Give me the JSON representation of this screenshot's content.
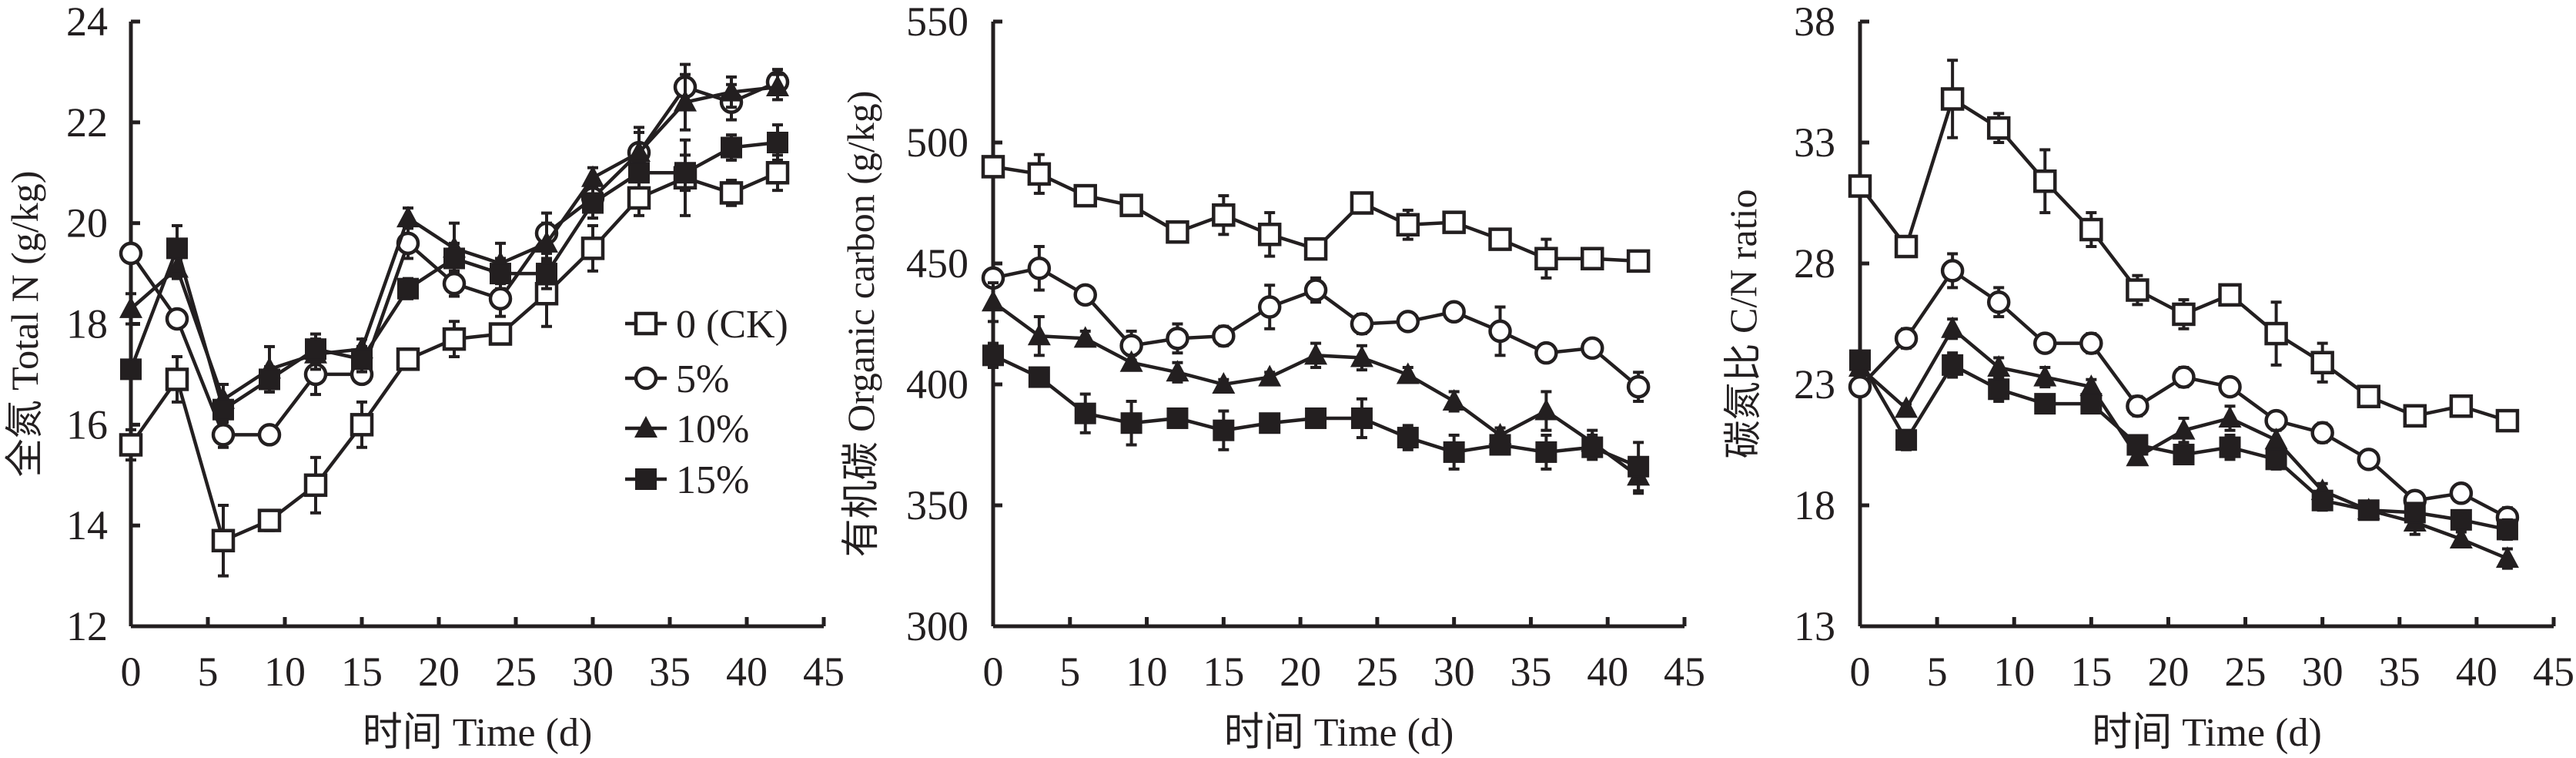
{
  "legend": {
    "entries": [
      "0 (CK)",
      "5%",
      "10%",
      "15%"
    ],
    "markers": [
      "open-square",
      "open-circle",
      "filled-triangle",
      "filled-square"
    ]
  },
  "colors": {
    "ink": "#231f20",
    "background": "#ffffff"
  },
  "chart_data": [
    {
      "type": "line",
      "xlabel": "时间 Time (d)",
      "ylabel": "全氮 Total N (g/kg)",
      "xlim": [
        0,
        45
      ],
      "xticks": [
        0,
        5,
        10,
        15,
        20,
        25,
        30,
        35,
        40,
        45
      ],
      "ylim": [
        12,
        24
      ],
      "yticks": [
        12,
        14,
        16,
        18,
        20,
        22,
        24
      ],
      "legend_position": "center-right",
      "grid": false,
      "x": [
        0,
        3,
        6,
        9,
        12,
        15,
        18,
        21,
        24,
        27,
        30,
        33,
        36,
        39,
        42
      ],
      "series": [
        {
          "name": "0 (CK)",
          "values": [
            15.6,
            16.9,
            13.7,
            14.1,
            14.8,
            16.0,
            17.3,
            17.7,
            17.8,
            18.6,
            19.5,
            20.5,
            20.9,
            20.6,
            21.0
          ],
          "errors": [
            0.3,
            0.45,
            0.7,
            0.2,
            0.55,
            0.45,
            0.2,
            0.35,
            0.15,
            0.65,
            0.45,
            0.35,
            0.75,
            0.25,
            0.35
          ]
        },
        {
          "name": "5%",
          "values": [
            19.4,
            18.1,
            15.8,
            15.8,
            17.0,
            17.0,
            19.6,
            18.8,
            18.5,
            19.8,
            20.5,
            21.4,
            22.7,
            22.4,
            22.8
          ],
          "errors": [
            0.1,
            0.1,
            0.25,
            0.1,
            0.4,
            0.15,
            0.3,
            0.25,
            0.35,
            0.4,
            0.4,
            0.5,
            0.45,
            0.35,
            0.25
          ]
        },
        {
          "name": "10%",
          "values": [
            18.3,
            19.1,
            16.5,
            17.1,
            17.4,
            17.5,
            20.1,
            19.5,
            19.2,
            19.6,
            20.9,
            21.4,
            22.4,
            22.6,
            22.7
          ],
          "errors": [
            0.3,
            0.2,
            0.3,
            0.45,
            0.3,
            0.2,
            0.2,
            0.5,
            0.4,
            0.4,
            0.2,
            0.4,
            0.55,
            0.3,
            0.25
          ]
        },
        {
          "name": "15%",
          "values": [
            17.1,
            19.5,
            16.3,
            16.9,
            17.5,
            17.3,
            18.7,
            19.3,
            19.0,
            19.0,
            20.4,
            21.0,
            21.0,
            21.5,
            21.6
          ],
          "errors": [
            0.15,
            0.45,
            0.2,
            0.25,
            0.3,
            0.25,
            0.2,
            0.3,
            0.3,
            0.3,
            0.3,
            0.3,
            0.35,
            0.25,
            0.35
          ]
        }
      ]
    },
    {
      "type": "line",
      "xlabel": "时间 Time (d)",
      "ylabel": "有机碳 Organic carbon (g/kg)",
      "xlim": [
        0,
        45
      ],
      "xticks": [
        0,
        5,
        10,
        15,
        20,
        25,
        30,
        35,
        40,
        45
      ],
      "ylim": [
        300,
        550
      ],
      "yticks": [
        300,
        350,
        400,
        450,
        500,
        550
      ],
      "grid": false,
      "x": [
        0,
        3,
        6,
        9,
        12,
        15,
        18,
        21,
        24,
        27,
        30,
        33,
        36,
        39,
        42
      ],
      "series": [
        {
          "name": "0 (CK)",
          "values": [
            490,
            487,
            478,
            474,
            463,
            470,
            462,
            456,
            475,
            466,
            467,
            460,
            452,
            452,
            451
          ],
          "errors": [
            3,
            8,
            3,
            4,
            2,
            8,
            9,
            4,
            2,
            6,
            3,
            2,
            8,
            4,
            2
          ]
        },
        {
          "name": "5%",
          "values": [
            444,
            448,
            437,
            416,
            419,
            420,
            432,
            439,
            425,
            426,
            430,
            422,
            413,
            415,
            399
          ],
          "errors": [
            3,
            9,
            3,
            6,
            6,
            4,
            9,
            5,
            4,
            2,
            2,
            10,
            2,
            2,
            6
          ]
        },
        {
          "name": "10%",
          "values": [
            434,
            420,
            419,
            409,
            405,
            400,
            403,
            412,
            411,
            404,
            393,
            379,
            389,
            376,
            362
          ],
          "errors": [
            8,
            8,
            3,
            3,
            4,
            2,
            2,
            5,
            5,
            3,
            4,
            3,
            8,
            5,
            7
          ]
        },
        {
          "name": "15%",
          "values": [
            412,
            403,
            388,
            384,
            386,
            381,
            384,
            386,
            386,
            378,
            372,
            375,
            372,
            374,
            366
          ],
          "errors": [
            5,
            3,
            8,
            9,
            3,
            8,
            3,
            3,
            8,
            5,
            7,
            3,
            7,
            5,
            10
          ]
        }
      ]
    },
    {
      "type": "line",
      "xlabel": "时间 Time (d)",
      "ylabel": "碳氮比 C/N ratio",
      "xlim": [
        0,
        45
      ],
      "xticks": [
        0,
        5,
        10,
        15,
        20,
        25,
        30,
        35,
        40,
        45
      ],
      "ylim": [
        13,
        38
      ],
      "yticks": [
        13,
        18,
        23,
        28,
        33,
        38
      ],
      "grid": false,
      "x": [
        0,
        3,
        6,
        9,
        12,
        15,
        18,
        21,
        24,
        27,
        30,
        33,
        36,
        39,
        42
      ],
      "series": [
        {
          "name": "0 (CK)",
          "values": [
            31.2,
            28.7,
            34.8,
            33.6,
            31.4,
            29.4,
            26.9,
            25.9,
            26.7,
            25.1,
            23.9,
            22.5,
            21.7,
            22.1,
            21.5
          ],
          "errors": [
            0.3,
            0.2,
            1.6,
            0.6,
            1.3,
            0.7,
            0.6,
            0.6,
            0.2,
            1.3,
            0.8,
            0.2,
            0.3,
            0.2,
            0.4
          ]
        },
        {
          "name": "5%",
          "values": [
            22.9,
            24.9,
            27.7,
            26.4,
            24.7,
            24.7,
            22.1,
            23.3,
            22.9,
            21.5,
            21.0,
            19.9,
            18.2,
            18.5,
            17.5
          ],
          "errors": [
            0.2,
            0.4,
            0.7,
            0.6,
            0.2,
            0.4,
            0.4,
            0.4,
            0.2,
            0.2,
            0.4,
            0.2,
            0.3,
            0.2,
            0.4
          ]
        },
        {
          "name": "10%",
          "values": [
            23.7,
            22.0,
            25.3,
            23.7,
            23.3,
            22.9,
            20.0,
            21.1,
            21.6,
            20.7,
            18.6,
            17.8,
            17.3,
            16.6,
            15.8
          ],
          "errors": [
            0.2,
            0.2,
            0.4,
            0.4,
            0.4,
            0.3,
            0.2,
            0.5,
            0.5,
            0.4,
            0.3,
            0.2,
            0.5,
            0.3,
            0.4
          ]
        },
        {
          "name": "15%",
          "values": [
            24.0,
            20.7,
            23.8,
            22.8,
            22.2,
            22.2,
            20.5,
            20.1,
            20.4,
            19.9,
            18.2,
            17.8,
            17.7,
            17.4,
            17.0
          ],
          "errors": [
            0.2,
            0.4,
            0.5,
            0.5,
            0.2,
            0.3,
            0.3,
            0.2,
            0.5,
            0.4,
            0.4,
            0.2,
            0.3,
            0.2,
            0.4
          ]
        }
      ]
    }
  ]
}
